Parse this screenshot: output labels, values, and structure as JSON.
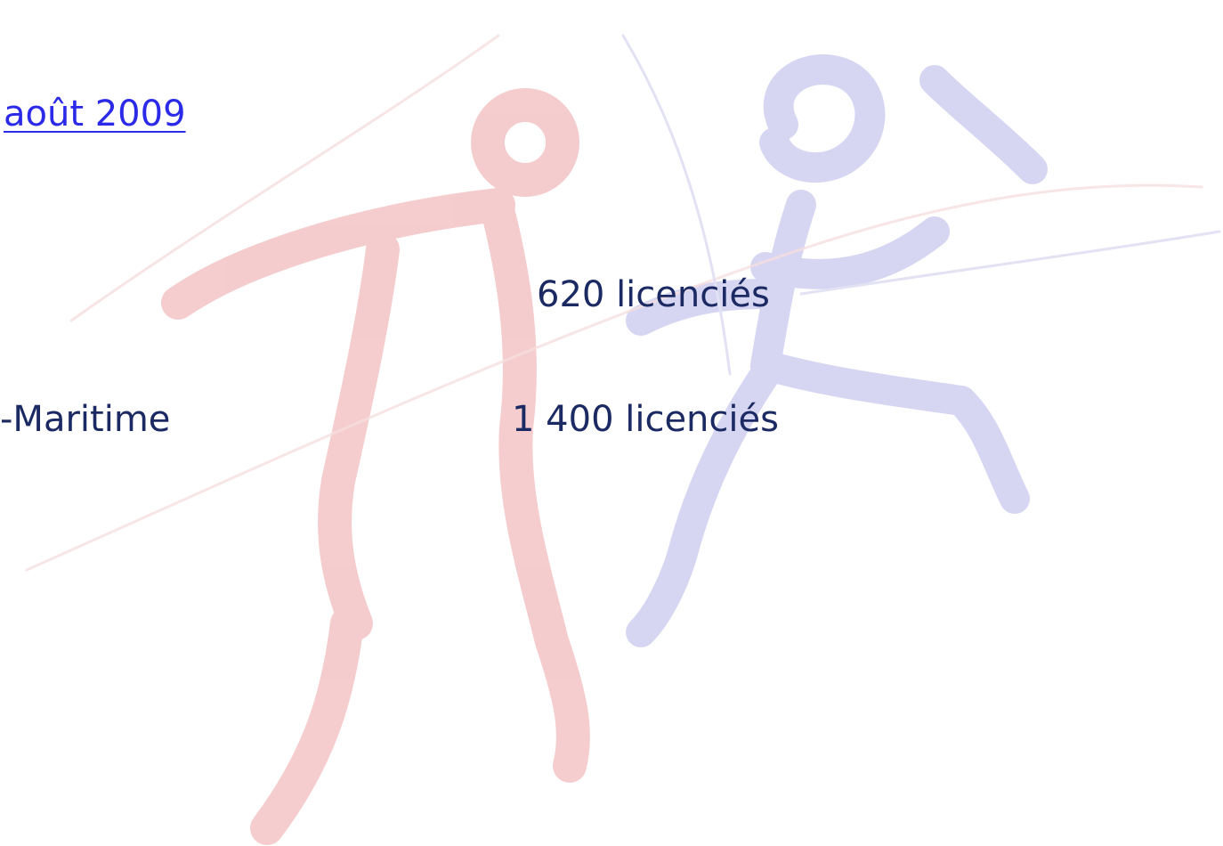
{
  "header": {
    "link": "août 2009"
  },
  "lines": [
    {
      "count": "620 licenciés"
    },
    {
      "label": "-Maritime",
      "count": "1 400 licenciés"
    }
  ]
}
